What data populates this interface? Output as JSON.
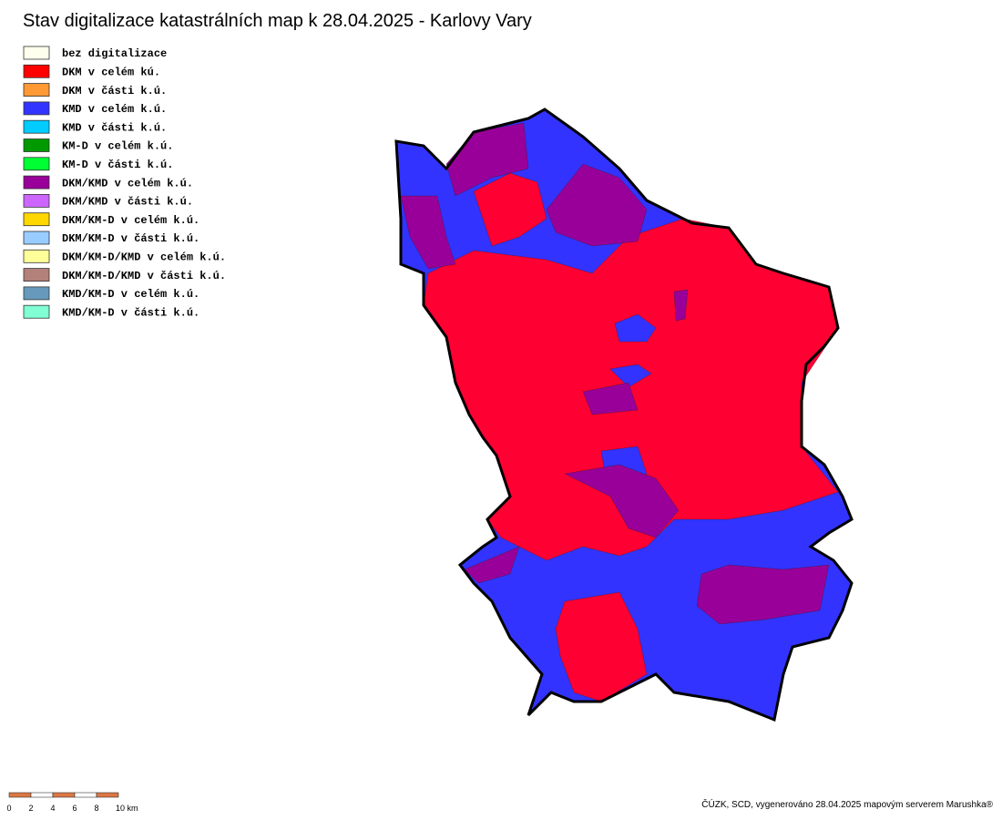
{
  "header": {
    "title": "Stav digitalizace katastrálních map k 28.04.2025 - Karlovy Vary"
  },
  "legend": {
    "items": [
      {
        "label": "bez digitalizace",
        "color": "#ffffee"
      },
      {
        "label": "DKM v celém kú.",
        "color": "#ff0000"
      },
      {
        "label": "DKM v části k.ú.",
        "color": "#ff9933"
      },
      {
        "label": "KMD v celém k.ú.",
        "color": "#3333ff"
      },
      {
        "label": "KMD v části k.ú.",
        "color": "#00ccff"
      },
      {
        "label": "KM-D v celém k.ú.",
        "color": "#009900"
      },
      {
        "label": "KM-D v části k.ú.",
        "color": "#00ff33"
      },
      {
        "label": "DKM/KMD v celém k.ú.",
        "color": "#990099"
      },
      {
        "label": "DKM/KMD v části k.ú.",
        "color": "#cc66ff"
      },
      {
        "label": "DKM/KM-D v celém k.ú.",
        "color": "#ffd700"
      },
      {
        "label": "DKM/KM-D v části k.ú.",
        "color": "#99ccff"
      },
      {
        "label": "DKM/KM-D/KMD v celém k.ú.",
        "color": "#ffff99"
      },
      {
        "label": "DKM/KM-D/KMD v části k.ú.",
        "color": "#b3807a"
      },
      {
        "label": "KMD/KM-D v celém k.ú.",
        "color": "#6699bb"
      },
      {
        "label": "KMD/KM-D v části k.ú.",
        "color": "#80ffd4"
      }
    ]
  },
  "scale_bar": {
    "labels": [
      "0",
      "2",
      "4",
      "6",
      "8",
      "10 km"
    ]
  },
  "footer": {
    "credit": "ČÚZK, SCD, vygenerováno 28.04.2025 mapovým serverem Marushka®"
  }
}
